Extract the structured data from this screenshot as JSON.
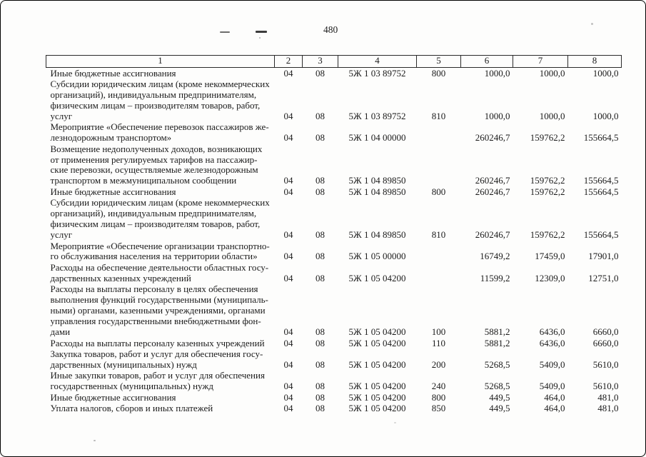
{
  "page": {
    "number": "480"
  },
  "table": {
    "headers": [
      "1",
      "2",
      "3",
      "4",
      "5",
      "6",
      "7",
      "8"
    ],
    "rows": [
      {
        "cells": [
          "Иные бюджетные ассигнования",
          "04",
          "08",
          "5Ж 1 03 89752",
          "800",
          "1000,0",
          "1000,0",
          "1000,0"
        ]
      },
      {
        "cells": [
          "Субсидии юридическим лицам (кроме некоммерческих\nорганизаций), индивидуальным предпринимателям,\nфизическим лицам – производителям товаров, работ,\nуслуг",
          "04",
          "08",
          "5Ж 1 03 89752",
          "810",
          "1000,0",
          "1000,0",
          "1000,0"
        ]
      },
      {
        "cells": [
          "Мероприятие «Обеспечение перевозок пассажиров же-\nлезнодорожным транспортом»",
          "04",
          "08",
          "5Ж 1 04 00000",
          "",
          "260246,7",
          "159762,2",
          "155664,5"
        ]
      },
      {
        "cells": [
          "Возмещение недополученных  доходов, возникающих\nот применения регулируемых тарифов на пассажир-\nские перевозки, осуществляемые железнодорожным\nтранспортом в межмуниципальном сообщении",
          "04",
          "08",
          "5Ж 1 04 89850",
          "",
          "260246,7",
          "159762,2",
          "155664,5"
        ]
      },
      {
        "cells": [
          "Иные бюджетные ассигнования",
          "04",
          "08",
          "5Ж 1 04 89850",
          "800",
          "260246,7",
          "159762,2",
          "155664,5"
        ]
      },
      {
        "cells": [
          "Субсидии юридическим лицам (кроме некоммерческих\nорганизаций), индивидуальным предпринимателям,\nфизическим лицам – производителям товаров, работ,\nуслуг",
          "04",
          "08",
          "5Ж 1 04 89850",
          "810",
          "260246,7",
          "159762,2",
          "155664,5"
        ]
      },
      {
        "cells": [
          "Мероприятие «Обеспечение организации транспортно-\nго обслуживания населения на территории области»",
          "04",
          "08",
          "5Ж 1 05 00000",
          "",
          "16749,2",
          "17459,0",
          "17901,0"
        ]
      },
      {
        "cells": [
          "Расходы на обеспечение деятельности областных госу-\nдарственных казенных учреждений",
          "04",
          "08",
          "5Ж 1 05 04200",
          "",
          "11599,2",
          "12309,0",
          "12751,0"
        ]
      },
      {
        "cells": [
          "Расходы на выплаты персоналу в целях обеспечения\nвыполнения функций государственными (муниципаль-\nными) органами, казенными учреждениями, органами\nуправления государственными внебюджетными фон-\nдами",
          "04",
          "08",
          "5Ж 1 05 04200",
          "100",
          "5881,2",
          "6436,0",
          "6660,0"
        ]
      },
      {
        "cells": [
          "Расходы на выплаты персоналу казенных учреждений",
          "04",
          "08",
          "5Ж 1 05 04200",
          "110",
          "5881,2",
          "6436,0",
          "6660,0"
        ]
      },
      {
        "cells": [
          "Закупка товаров, работ и услуг для обеспечения госу-\nдарственных (муниципальных) нужд",
          "04",
          "08",
          "5Ж 1 05 04200",
          "200",
          "5268,5",
          "5409,0",
          "5610,0"
        ]
      },
      {
        "cells": [
          "Иные закупки товаров, работ и услуг для обеспечения\nгосударственных (муниципальных) нужд",
          "04",
          "08",
          "5Ж 1 05 04200",
          "240",
          "5268,5",
          "5409,0",
          "5610,0"
        ]
      },
      {
        "cells": [
          "Иные бюджетные ассигнования",
          "04",
          "08",
          "5Ж 1 05 04200",
          "800",
          "449,5",
          "464,0",
          "481,0"
        ]
      },
      {
        "cells": [
          "Уплата налогов, сборов и иных платежей",
          "04",
          "08",
          "5Ж 1 05 04200",
          "850",
          "449,5",
          "464,0",
          "481,0"
        ]
      }
    ]
  }
}
